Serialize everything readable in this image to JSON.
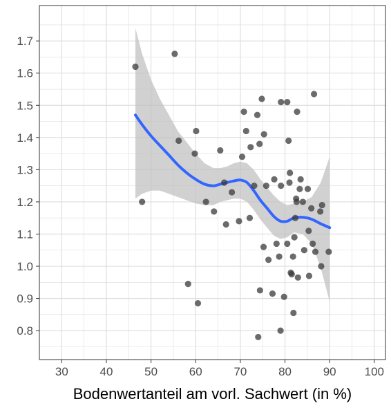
{
  "chart_data": {
    "type": "scatter",
    "title": "",
    "xlabel": "Bodenwertanteil am vorl. Sachwert (in %)",
    "ylabel": "",
    "xlim": [
      25,
      102.5
    ],
    "ylim": [
      0.71,
      1.81
    ],
    "x_ticks": [
      30,
      40,
      50,
      60,
      70,
      80,
      90,
      100
    ],
    "x_tick_labels": [
      "30",
      "40",
      "50",
      "60",
      "70",
      "80",
      "90",
      "100"
    ],
    "y_ticks": [
      0.8,
      0.9,
      1.0,
      1.1,
      1.2,
      1.3,
      1.4,
      1.5,
      1.6,
      1.7
    ],
    "y_tick_labels": [
      "0.8",
      "0.9",
      "1.0",
      "1.1",
      "1.2",
      "1.3",
      "1.4",
      "1.5",
      "1.6",
      "1.7"
    ],
    "grid": true,
    "legend": "none",
    "points": [
      {
        "x": 46.5,
        "y": 1.62
      },
      {
        "x": 48.0,
        "y": 1.2
      },
      {
        "x": 55.3,
        "y": 1.66
      },
      {
        "x": 56.2,
        "y": 1.39
      },
      {
        "x": 58.3,
        "y": 0.945
      },
      {
        "x": 59.8,
        "y": 1.35
      },
      {
        "x": 60.1,
        "y": 1.42
      },
      {
        "x": 60.5,
        "y": 0.885
      },
      {
        "x": 62.3,
        "y": 1.2
      },
      {
        "x": 64.1,
        "y": 1.17
      },
      {
        "x": 65.5,
        "y": 1.36
      },
      {
        "x": 66.4,
        "y": 1.26
      },
      {
        "x": 66.8,
        "y": 1.13
      },
      {
        "x": 68.1,
        "y": 1.23
      },
      {
        "x": 69.7,
        "y": 1.14
      },
      {
        "x": 70.4,
        "y": 1.34
      },
      {
        "x": 70.8,
        "y": 1.48
      },
      {
        "x": 71.3,
        "y": 1.42
      },
      {
        "x": 72.1,
        "y": 1.15
      },
      {
        "x": 72.3,
        "y": 1.37
      },
      {
        "x": 73.1,
        "y": 1.25
      },
      {
        "x": 73.8,
        "y": 1.47
      },
      {
        "x": 74.0,
        "y": 0.78
      },
      {
        "x": 74.3,
        "y": 1.38
      },
      {
        "x": 74.4,
        "y": 0.925
      },
      {
        "x": 74.8,
        "y": 1.52
      },
      {
        "x": 75.2,
        "y": 1.06
      },
      {
        "x": 75.3,
        "y": 1.41
      },
      {
        "x": 75.8,
        "y": 1.25
      },
      {
        "x": 76.3,
        "y": 1.02
      },
      {
        "x": 77.2,
        "y": 0.915
      },
      {
        "x": 77.6,
        "y": 1.27
      },
      {
        "x": 78.1,
        "y": 1.07
      },
      {
        "x": 78.7,
        "y": 1.03
      },
      {
        "x": 79.0,
        "y": 0.8
      },
      {
        "x": 79.1,
        "y": 1.25
      },
      {
        "x": 79.1,
        "y": 1.51
      },
      {
        "x": 79.8,
        "y": 0.905
      },
      {
        "x": 80.5,
        "y": 1.51
      },
      {
        "x": 80.5,
        "y": 1.07
      },
      {
        "x": 80.8,
        "y": 1.39
      },
      {
        "x": 81.0,
        "y": 1.26
      },
      {
        "x": 81.1,
        "y": 1.29
      },
      {
        "x": 81.3,
        "y": 0.98
      },
      {
        "x": 81.5,
        "y": 0.975
      },
      {
        "x": 81.8,
        "y": 1.03
      },
      {
        "x": 81.9,
        "y": 0.855
      },
      {
        "x": 82.1,
        "y": 1.09
      },
      {
        "x": 82.3,
        "y": 1.15
      },
      {
        "x": 82.5,
        "y": 1.21
      },
      {
        "x": 82.6,
        "y": 1.2
      },
      {
        "x": 82.7,
        "y": 1.48
      },
      {
        "x": 82.9,
        "y": 0.965
      },
      {
        "x": 83.3,
        "y": 1.24
      },
      {
        "x": 83.5,
        "y": 1.27
      },
      {
        "x": 84.0,
        "y": 1.2
      },
      {
        "x": 84.3,
        "y": 1.05
      },
      {
        "x": 85.1,
        "y": 1.24
      },
      {
        "x": 85.3,
        "y": 1.11
      },
      {
        "x": 85.4,
        "y": 0.97
      },
      {
        "x": 85.9,
        "y": 1.18
      },
      {
        "x": 86.2,
        "y": 1.07
      },
      {
        "x": 86.5,
        "y": 1.535
      },
      {
        "x": 86.8,
        "y": 1.045
      },
      {
        "x": 87.9,
        "y": 1.17
      },
      {
        "x": 88.1,
        "y": 1.0
      },
      {
        "x": 88.3,
        "y": 1.19
      },
      {
        "x": 89.8,
        "y": 1.045
      }
    ],
    "smooth_line": {
      "x": [
        46.5,
        48,
        50,
        52,
        54,
        56,
        58,
        60,
        62,
        64,
        65.5,
        67,
        68.5,
        70,
        71.5,
        73,
        74.5,
        76,
        77.5,
        79,
        80.5,
        82,
        84,
        86,
        88,
        90
      ],
      "y": [
        1.47,
        1.44,
        1.405,
        1.375,
        1.345,
        1.315,
        1.29,
        1.27,
        1.255,
        1.25,
        1.255,
        1.26,
        1.265,
        1.268,
        1.26,
        1.235,
        1.205,
        1.18,
        1.155,
        1.14,
        1.14,
        1.15,
        1.152,
        1.146,
        1.132,
        1.12
      ]
    },
    "confidence_band": {
      "x": [
        46.5,
        48,
        50,
        52,
        54,
        56,
        58,
        60,
        62,
        64,
        65.5,
        67,
        68.5,
        70,
        71.5,
        73,
        74.5,
        76,
        77.5,
        79,
        80.5,
        82,
        84,
        86,
        88,
        90
      ],
      "upper": [
        1.74,
        1.66,
        1.58,
        1.52,
        1.47,
        1.42,
        1.385,
        1.35,
        1.32,
        1.305,
        1.305,
        1.31,
        1.32,
        1.325,
        1.32,
        1.3,
        1.27,
        1.245,
        1.22,
        1.2,
        1.19,
        1.195,
        1.2,
        1.215,
        1.26,
        1.34
      ],
      "lower": [
        1.21,
        1.225,
        1.235,
        1.235,
        1.225,
        1.215,
        1.205,
        1.195,
        1.19,
        1.19,
        1.2,
        1.205,
        1.21,
        1.21,
        1.2,
        1.175,
        1.145,
        1.12,
        1.095,
        1.085,
        1.09,
        1.105,
        1.1,
        1.07,
        0.995,
        0.89
      ]
    },
    "colors": {
      "points": "#3a3a3a",
      "smooth_line": "#3366FF",
      "band": "#bfbfbf",
      "grid": "#dcdcdc",
      "panel_border": "#333333"
    }
  }
}
